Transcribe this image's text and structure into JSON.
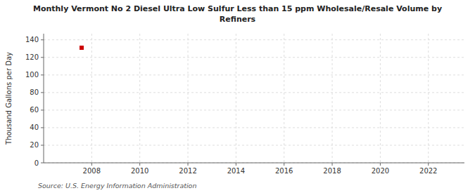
{
  "chart_data": {
    "type": "scatter",
    "title": "Monthly Vermont No 2 Diesel Ultra Low Sulfur Less than 15 ppm Wholesale/Resale Volume by\nRefiners",
    "y_label": "Thousand Gallons per Day",
    "source": "Source: U.S. Energy Information Administration",
    "x": [
      2007.58
    ],
    "values": [
      131
    ],
    "color": "#cc0000",
    "marker": "square",
    "xlim": [
      2006.0,
      2023.5
    ],
    "ylim": [
      0,
      147
    ],
    "xticks": [
      2008,
      2010,
      2012,
      2014,
      2016,
      2018,
      2020,
      2022
    ],
    "yticks": [
      0,
      20,
      40,
      60,
      80,
      100,
      120,
      140
    ],
    "grid": true
  }
}
